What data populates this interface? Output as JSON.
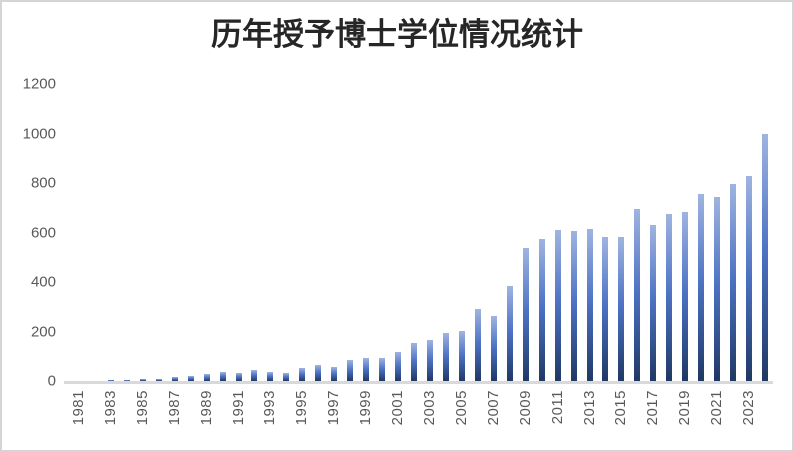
{
  "chart_data": {
    "type": "bar",
    "title": "历年授予博士学位情况统计",
    "categories": [
      "1981",
      "1982",
      "1983",
      "1984",
      "1985",
      "1986",
      "1987",
      "1988",
      "1989",
      "1990",
      "1991",
      "1992",
      "1993",
      "1994",
      "1995",
      "1996",
      "1997",
      "1998",
      "1999",
      "2000",
      "2001",
      "2002",
      "2003",
      "2004",
      "2005",
      "2006",
      "2007",
      "2008",
      "2009",
      "2010",
      "2011",
      "2012",
      "2013",
      "2014",
      "2015",
      "2016",
      "2017",
      "2018",
      "2019",
      "2020",
      "2021",
      "2022",
      "2023",
      "2024"
    ],
    "values": [
      0,
      0,
      3,
      6,
      10,
      8,
      15,
      20,
      27,
      35,
      33,
      46,
      36,
      34,
      51,
      64,
      57,
      85,
      94,
      91,
      118,
      155,
      165,
      192,
      202,
      290,
      262,
      383,
      538,
      575,
      610,
      606,
      615,
      583,
      580,
      695,
      632,
      676,
      684,
      755,
      744,
      794,
      830,
      1000
    ],
    "xlabel": "",
    "ylabel": "",
    "ylim": [
      0,
      1200
    ],
    "y_ticks": [
      0,
      200,
      400,
      600,
      800,
      1000,
      1200
    ],
    "visible_x_tick_labels": [
      "1981",
      "1983",
      "1985",
      "1987",
      "1989",
      "1991",
      "1993",
      "1995",
      "1997",
      "1999",
      "2001",
      "2003",
      "2005",
      "2007",
      "2009",
      "2011",
      "2013",
      "2015",
      "2017",
      "2019",
      "2021",
      "2023"
    ],
    "x_label_every_n_years": 2,
    "grid": false,
    "legend_position": "none",
    "colors": {
      "bar_gradient_top": "#9fb4e0",
      "bar_gradient_mid": "#4d72c4",
      "bar_gradient_bottom": "#1f3864",
      "axis_line": "#d9d9d9",
      "tick_text": "#595959",
      "title_text": "#262626",
      "canvas_border": "#d5d5d5",
      "background": "#ffffff"
    }
  }
}
